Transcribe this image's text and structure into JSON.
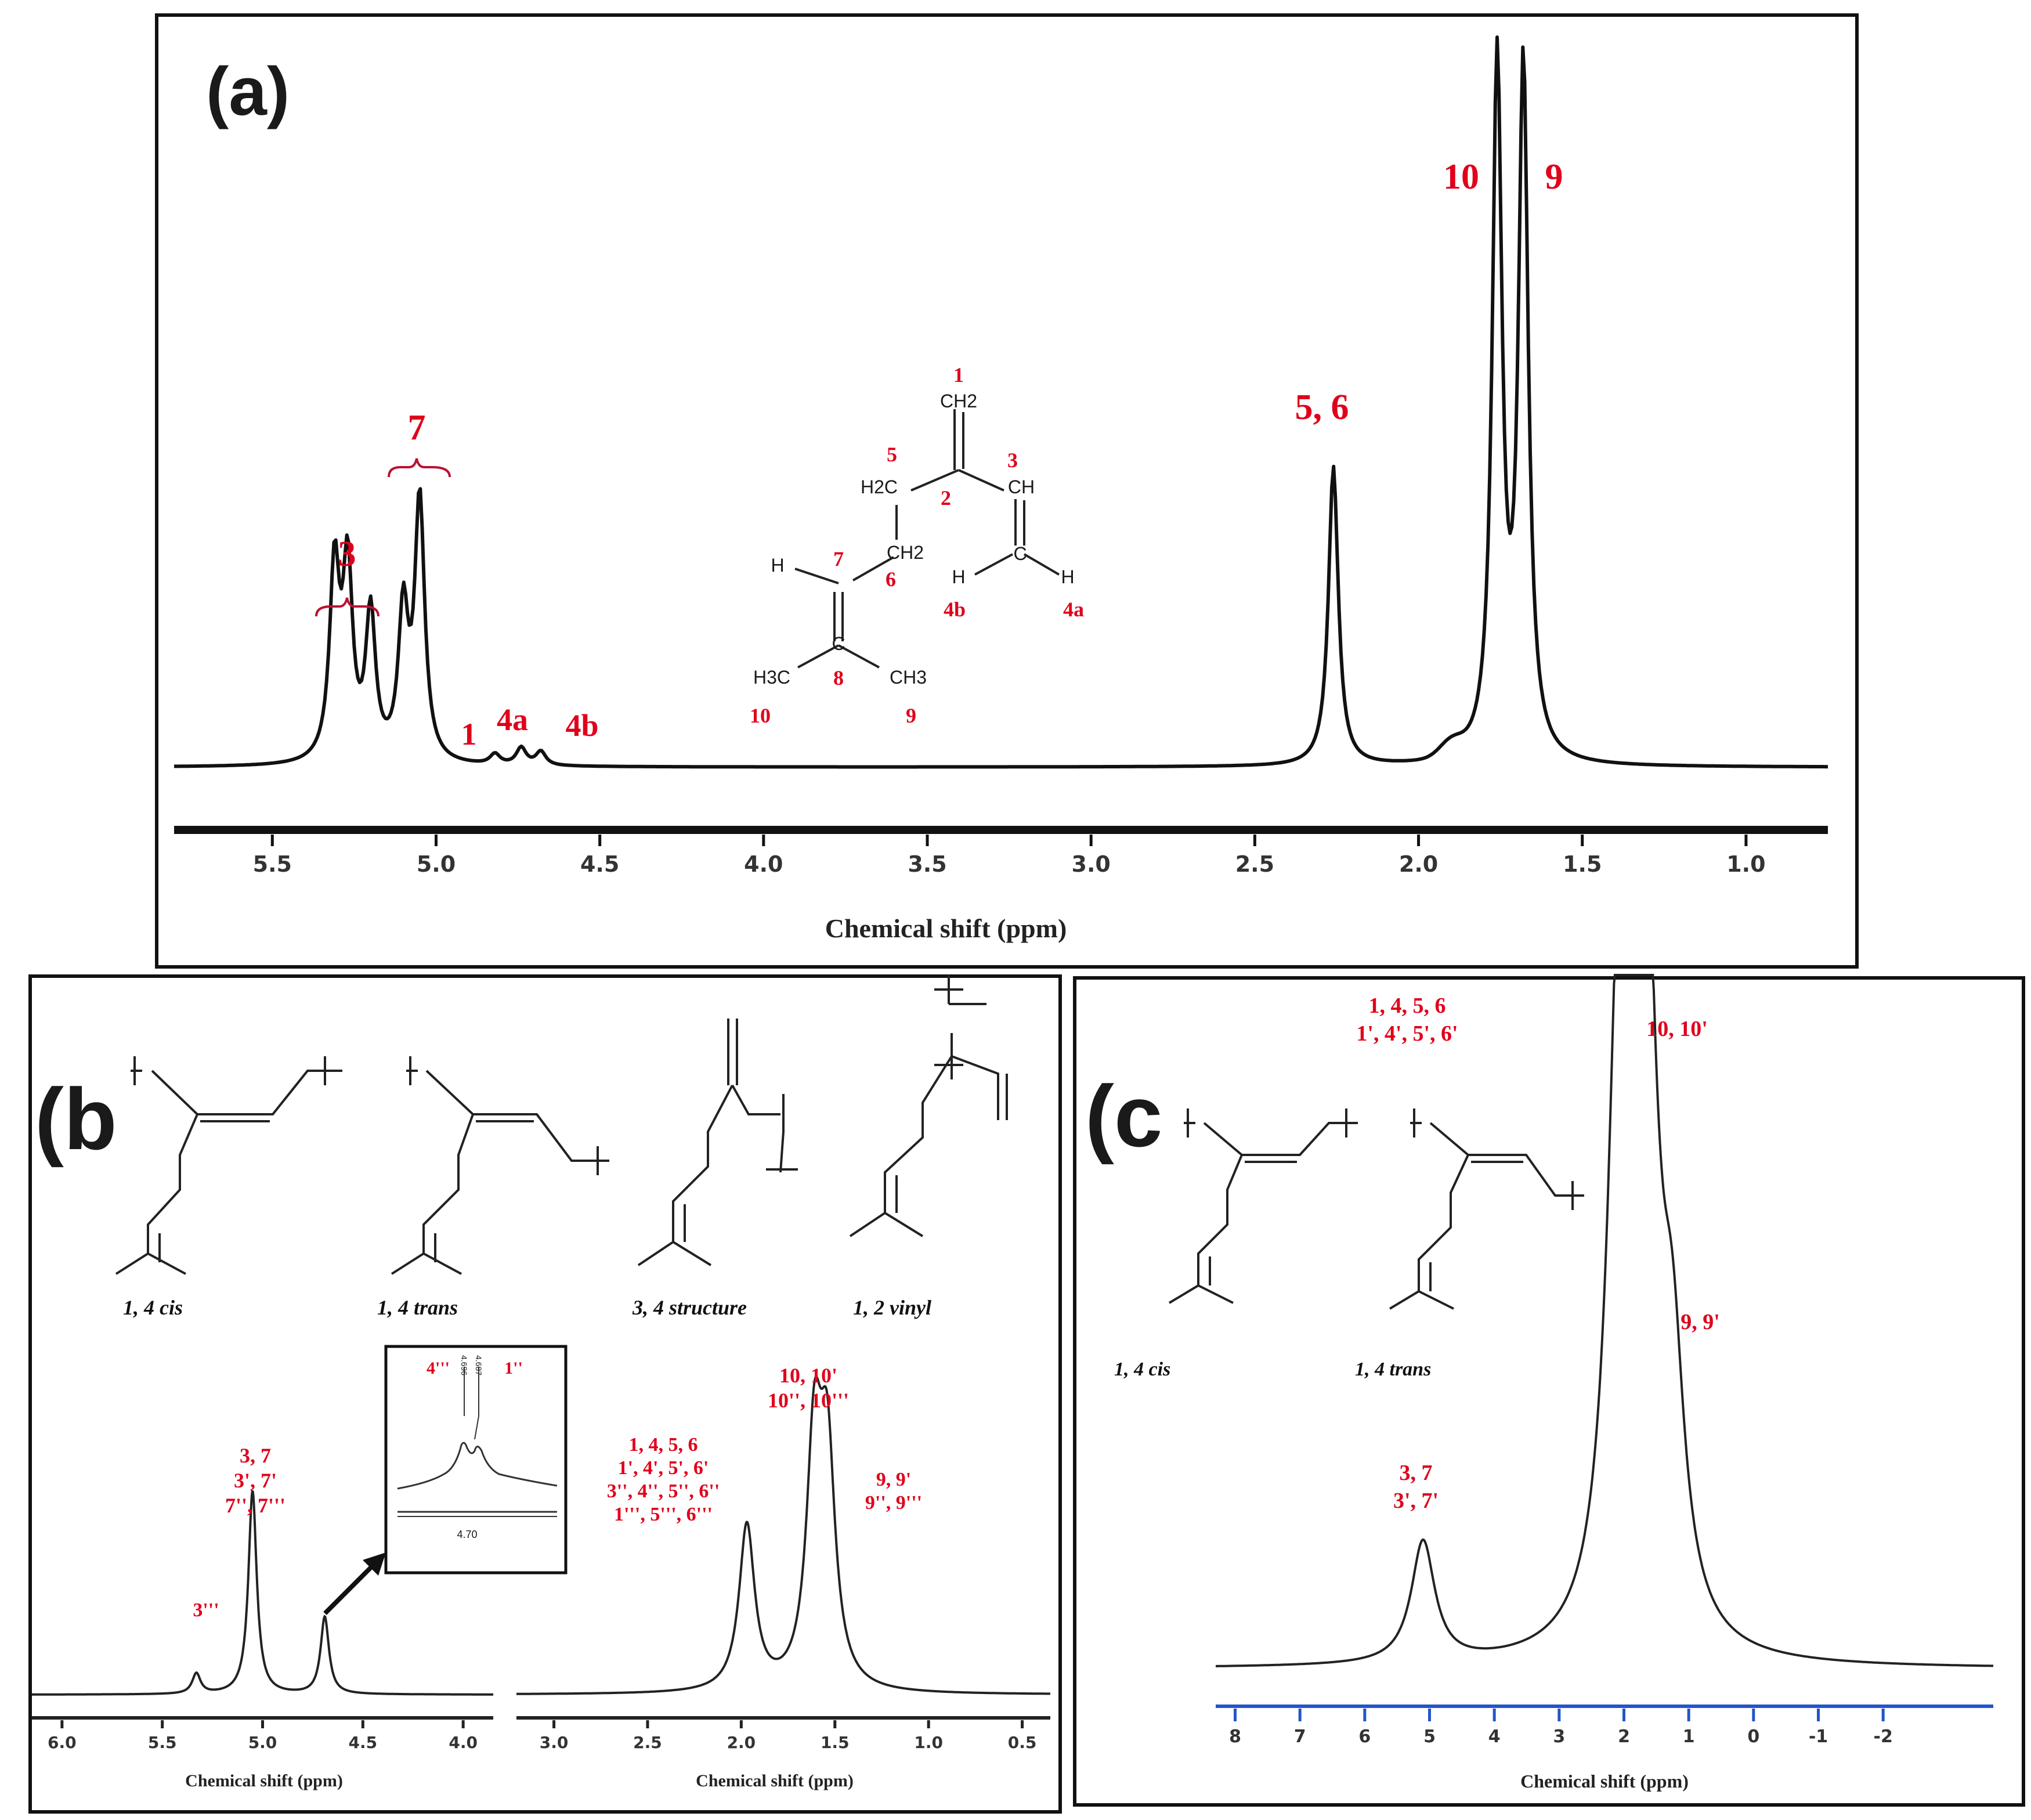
{
  "panels": [
    {
      "id": "a",
      "label": "(a)",
      "xlabel": "Chemical shift (ppm)",
      "ticks": [
        "5.5",
        "5.0",
        "4.5",
        "4.0",
        "3.5",
        "3.0",
        "2.5",
        "2.0",
        "1.5",
        "1.0"
      ],
      "peak_labels": [
        "3",
        "7",
        "1",
        "4a",
        "4b",
        "5, 6",
        "10",
        "9"
      ],
      "structure_labels": [
        "1",
        "2",
        "3",
        "4a",
        "4b",
        "5",
        "6",
        "7",
        "8",
        "9",
        "10"
      ],
      "structure_groups": [
        "CH2",
        "H2C",
        "CH",
        "CH2",
        "H",
        "H",
        "C",
        "H",
        "C",
        "H3C",
        "CH3"
      ]
    },
    {
      "id": "b",
      "label": "(b",
      "xlabel": "Chemical shift (ppm)",
      "ticks_left": [
        "6.0",
        "5.5",
        "5.0",
        "4.5",
        "4.0"
      ],
      "ticks_right": [
        "3.0",
        "2.5",
        "2.0",
        "1.5",
        "1.0",
        "0.5"
      ],
      "captions": [
        "1, 4 cis",
        "1, 4 trans",
        "3, 4 structure",
        "1, 2 vinyl"
      ],
      "peak_labels": [
        "3'''",
        "3, 7",
        "3', 7'",
        "7'', 7'''",
        "1, 4, 5, 6",
        "1', 4', 5', 6'",
        "3'', 4'', 5'', 6''",
        "1''', 5''', 6'''",
        "10, 10'",
        "10'', 10'''",
        "9, 9'",
        "9'', 9'''"
      ],
      "inset": {
        "labels": [
          "4'''",
          "1''"
        ],
        "tick": "4.70",
        "peak_marks": [
          "4.696",
          "4.687"
        ]
      }
    },
    {
      "id": "c",
      "label": "(c",
      "xlabel": "Chemical shift (ppm)",
      "ticks": [
        "8",
        "7",
        "6",
        "5",
        "4",
        "3",
        "2",
        "1",
        "0",
        "-1",
        "-2"
      ],
      "captions": [
        "1, 4 cis",
        "1, 4 trans"
      ],
      "peak_labels": [
        "1, 4, 5, 6",
        "1', 4', 5', 6'",
        "10, 10'",
        "9, 9'",
        "3, 7",
        "3', 7'"
      ]
    }
  ],
  "colors": {
    "annotation": "#e0001b",
    "trace": "#111111",
    "axis_c": "#2255cc"
  },
  "chart_data": [
    {
      "type": "line",
      "panel": "a",
      "title": "",
      "xlabel": "Chemical shift (ppm)",
      "ylabel": "",
      "xlim": [
        5.8,
        0.75
      ],
      "reversed_x": true,
      "peaks": [
        {
          "x": 5.31,
          "y": 0.55,
          "label": "3"
        },
        {
          "x": 5.27,
          "y": 0.54,
          "label": "3"
        },
        {
          "x": 5.2,
          "y": 0.42,
          "label": "3"
        },
        {
          "x": 5.1,
          "y": 0.42,
          "label": "7"
        },
        {
          "x": 5.05,
          "y": 0.75,
          "label": "7"
        },
        {
          "x": 4.82,
          "y": 0.03,
          "label": "1"
        },
        {
          "x": 4.74,
          "y": 0.05,
          "label": "4a"
        },
        {
          "x": 4.68,
          "y": 0.04,
          "label": "4b"
        },
        {
          "x": 2.26,
          "y": 0.86,
          "label": "5, 6"
        },
        {
          "x": 1.76,
          "y": 2.0,
          "label": "10"
        },
        {
          "x": 1.68,
          "y": 1.98,
          "label": "9"
        }
      ]
    },
    {
      "type": "line",
      "panel": "b-left",
      "xlabel": "Chemical shift (ppm)",
      "xlim": [
        6.15,
        3.85
      ],
      "reversed_x": true,
      "peaks": [
        {
          "x": 5.33,
          "y": 0.1,
          "label": "3'''"
        },
        {
          "x": 5.05,
          "y": 1.0,
          "label": "3, 7 / 3', 7' / 7'', 7'''"
        },
        {
          "x": 4.69,
          "y": 0.38
        }
      ]
    },
    {
      "type": "line",
      "panel": "b-right",
      "xlabel": "Chemical shift (ppm)",
      "xlim": [
        3.2,
        0.35
      ],
      "reversed_x": true,
      "peaks": [
        {
          "x": 1.97,
          "y": 0.95,
          "label": "1, 4, 5, 6 / 1', 4', 5', 6' / 3'', 4'', 5'', 6'' / 1''', 5''', 6'''"
        },
        {
          "x": 1.61,
          "y": 1.35,
          "label": "10, 10' / 10'', 10'''"
        },
        {
          "x": 1.54,
          "y": 1.25,
          "label": "9, 9' / 9'', 9'''"
        }
      ]
    },
    {
      "type": "line",
      "panel": "c",
      "xlabel": "Chemical shift (ppm)",
      "xlim": [
        8.3,
        -3.7
      ],
      "reversed_x": true,
      "peaks": [
        {
          "x": 5.1,
          "y": 0.3,
          "label": "3, 7 / 3', 7'"
        },
        {
          "x": 2.05,
          "y": 1.65,
          "label": "1, 4, 5, 6 / 1', 4', 5', 6'"
        },
        {
          "x": 1.68,
          "y": 1.7,
          "label": "10, 10'"
        },
        {
          "x": 1.25,
          "y": 0.55,
          "label": "9, 9'"
        }
      ]
    }
  ]
}
